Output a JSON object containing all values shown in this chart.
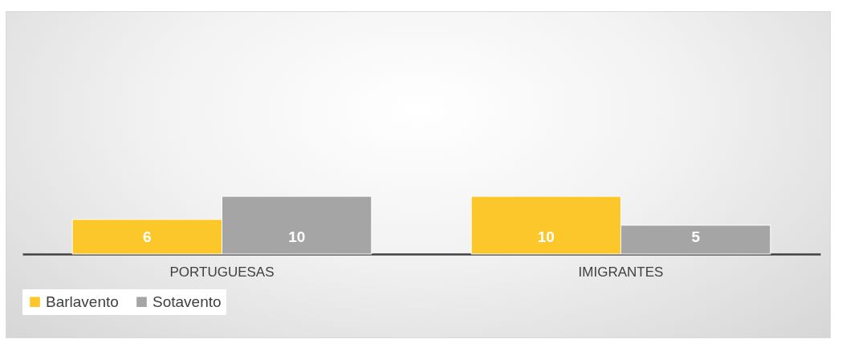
{
  "chart_data": {
    "type": "bar",
    "categories": [
      "PORTUGUESAS",
      "IMIGRANTES"
    ],
    "series": [
      {
        "name": "Barlavento",
        "color": "#fcc72a",
        "values": [
          6,
          10
        ]
      },
      {
        "name": "Sotavento",
        "color": "#a5a5a5",
        "values": [
          10,
          5
        ]
      }
    ],
    "data_labels": true,
    "legend": "bottom",
    "tick_labels": "x"
  }
}
